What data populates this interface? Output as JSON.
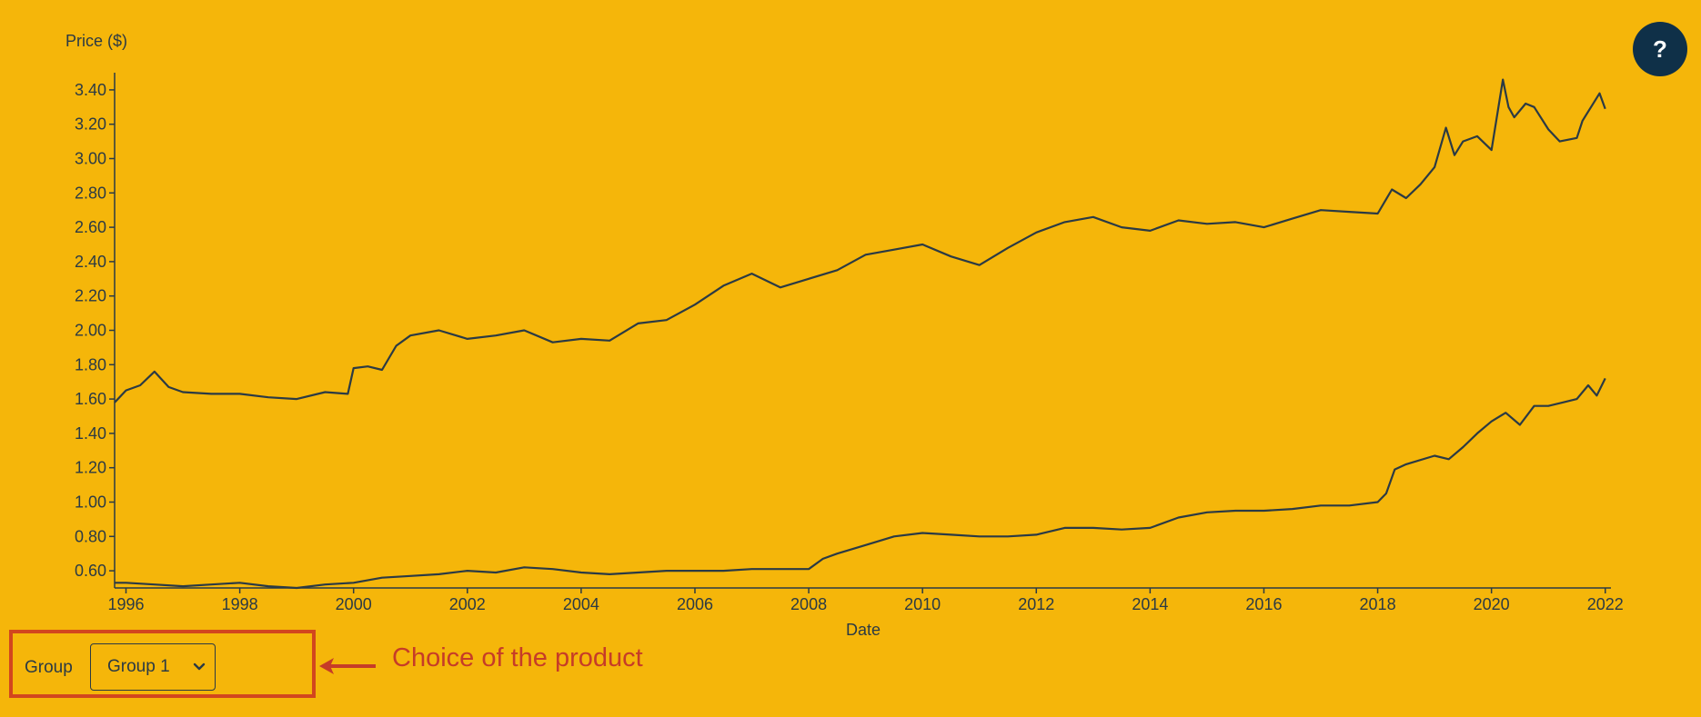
{
  "colors": {
    "background": "#f5b60a",
    "line": "#2b3a44",
    "help_button": "#0f3048",
    "annotation": "#c63c28",
    "panel_border": "#d2461e"
  },
  "help": {
    "label": "?",
    "icon": "question-icon"
  },
  "controls": {
    "group_label": "Group",
    "group_selected": "Group 1",
    "annotation": "Choice of the product"
  },
  "chart_data": {
    "type": "line",
    "ylabel": "Price ($)",
    "xlabel": "Date",
    "xlim": [
      1995.8,
      2022.1
    ],
    "ylim": [
      0.5,
      3.5
    ],
    "x_ticks": [
      1996,
      1998,
      2000,
      2002,
      2004,
      2006,
      2008,
      2010,
      2012,
      2014,
      2016,
      2018,
      2020,
      2022
    ],
    "x_tick_labels": [
      "1996",
      "1998",
      "2000",
      "2002",
      "2004",
      "2006",
      "2008",
      "2010",
      "2012",
      "2014",
      "2016",
      "2018",
      "2020",
      "2022"
    ],
    "y_ticks": [
      0.6,
      0.8,
      1.0,
      1.2,
      1.4,
      1.6,
      1.8,
      2.0,
      2.2,
      2.4,
      2.6,
      2.8,
      3.0,
      3.2,
      3.4
    ],
    "y_tick_labels": [
      "0.60",
      "0.80",
      "1.00",
      "1.20",
      "1.40",
      "1.60",
      "1.80",
      "2.00",
      "2.20",
      "2.40",
      "2.60",
      "2.80",
      "3.00",
      "3.20",
      "3.40"
    ],
    "grid": false,
    "legend": "none",
    "series": [
      {
        "x": [
          1995.8,
          1996.0,
          1996.25,
          1996.5,
          1996.75,
          1997.0,
          1997.5,
          1998.0,
          1998.5,
          1999.0,
          1999.5,
          1999.9,
          2000.0,
          2000.25,
          2000.5,
          2000.75,
          2001.0,
          2001.5,
          2002.0,
          2002.5,
          2003.0,
          2003.5,
          2004.0,
          2004.5,
          2005.0,
          2005.5,
          2006.0,
          2006.5,
          2007.0,
          2007.5,
          2008.0,
          2008.5,
          2009.0,
          2009.5,
          2010.0,
          2010.5,
          2011.0,
          2011.5,
          2012.0,
          2012.5,
          2013.0,
          2013.5,
          2014.0,
          2014.5,
          2015.0,
          2015.5,
          2016.0,
          2016.5,
          2017.0,
          2017.5,
          2018.0,
          2018.25,
          2018.5,
          2018.75,
          2019.0,
          2019.2,
          2019.35,
          2019.5,
          2019.75,
          2020.0,
          2020.2,
          2020.3,
          2020.4,
          2020.6,
          2020.75,
          2021.0,
          2021.2,
          2021.5,
          2021.6,
          2021.75,
          2021.9,
          2022.0
        ],
        "values": [
          1.58,
          1.65,
          1.68,
          1.76,
          1.67,
          1.64,
          1.63,
          1.63,
          1.61,
          1.6,
          1.64,
          1.63,
          1.78,
          1.79,
          1.77,
          1.91,
          1.97,
          2.0,
          1.95,
          1.97,
          2.0,
          1.93,
          1.95,
          1.94,
          2.04,
          2.06,
          2.15,
          2.26,
          2.33,
          2.25,
          2.3,
          2.35,
          2.44,
          2.47,
          2.5,
          2.43,
          2.38,
          2.48,
          2.57,
          2.63,
          2.66,
          2.6,
          2.58,
          2.64,
          2.62,
          2.63,
          2.6,
          2.65,
          2.7,
          2.69,
          2.68,
          2.82,
          2.77,
          2.85,
          2.95,
          3.18,
          3.02,
          3.1,
          3.13,
          3.05,
          3.46,
          3.3,
          3.24,
          3.32,
          3.3,
          3.17,
          3.1,
          3.12,
          3.22,
          3.3,
          3.38,
          3.29
        ]
      },
      {
        "x": [
          1995.8,
          1996.0,
          1996.5,
          1997.0,
          1997.5,
          1998.0,
          1998.5,
          1999.0,
          1999.5,
          2000.0,
          2000.5,
          2001.0,
          2001.5,
          2002.0,
          2002.5,
          2003.0,
          2003.5,
          2004.0,
          2004.5,
          2005.0,
          2005.5,
          2006.0,
          2006.5,
          2007.0,
          2007.5,
          2008.0,
          2008.25,
          2008.5,
          2009.0,
          2009.5,
          2010.0,
          2010.5,
          2011.0,
          2011.5,
          2012.0,
          2012.5,
          2013.0,
          2013.5,
          2014.0,
          2014.5,
          2015.0,
          2015.5,
          2016.0,
          2016.5,
          2017.0,
          2017.5,
          2018.0,
          2018.15,
          2018.3,
          2018.5,
          2019.0,
          2019.25,
          2019.5,
          2019.75,
          2020.0,
          2020.25,
          2020.5,
          2020.75,
          2021.0,
          2021.25,
          2021.5,
          2021.7,
          2021.85,
          2022.0
        ],
        "values": [
          0.53,
          0.53,
          0.52,
          0.51,
          0.52,
          0.53,
          0.51,
          0.5,
          0.52,
          0.53,
          0.56,
          0.57,
          0.58,
          0.6,
          0.59,
          0.62,
          0.61,
          0.59,
          0.58,
          0.59,
          0.6,
          0.6,
          0.6,
          0.61,
          0.61,
          0.61,
          0.67,
          0.7,
          0.75,
          0.8,
          0.82,
          0.81,
          0.8,
          0.8,
          0.81,
          0.85,
          0.85,
          0.84,
          0.85,
          0.91,
          0.94,
          0.95,
          0.95,
          0.96,
          0.98,
          0.98,
          1.0,
          1.05,
          1.19,
          1.22,
          1.27,
          1.25,
          1.32,
          1.4,
          1.47,
          1.52,
          1.45,
          1.56,
          1.56,
          1.58,
          1.6,
          1.68,
          1.62,
          1.72
        ]
      }
    ]
  }
}
